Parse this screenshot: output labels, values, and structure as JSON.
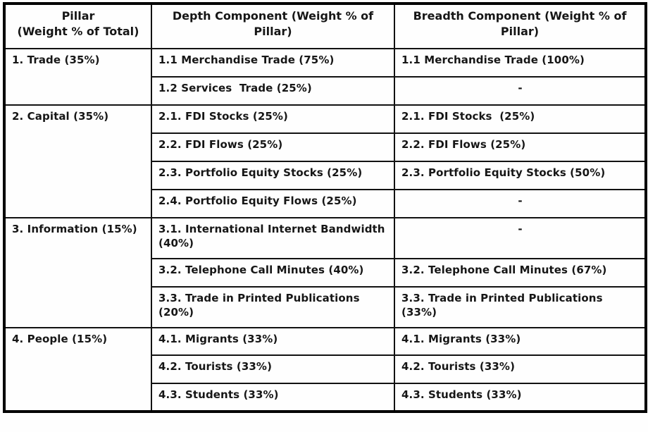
{
  "page": {
    "background_color": "#ffffff",
    "border_color": "#000000",
    "text_color": "#161616"
  },
  "table": {
    "columns": [
      {
        "label": "Pillar\n(Weight % of Total)"
      },
      {
        "label": "Depth Component (Weight % of\nPillar)"
      },
      {
        "label": "Breadth Component (Weight % of\nPillar)"
      }
    ],
    "rows": [
      {
        "pillar": "1. Trade (35%)",
        "depth": "1.1 Merchandise Trade (75%)",
        "breadth": "1.1 Merchandise Trade (100%)"
      },
      {
        "depth": "1.2 Services  Trade (25%)",
        "breadth": "-"
      },
      {
        "pillar": "2. Capital (35%)",
        "depth": "2.1. FDI Stocks (25%)",
        "breadth": "2.1. FDI Stocks  (25%)"
      },
      {
        "depth": "2.2. FDI Flows (25%)",
        "breadth": "2.2. FDI Flows (25%)"
      },
      {
        "depth": "2.3. Portfolio Equity Stocks (25%)",
        "breadth": "2.3. Portfolio Equity Stocks (50%)"
      },
      {
        "depth": "2.4. Portfolio Equity Flows (25%)",
        "breadth": "-"
      },
      {
        "pillar": "3. Information (15%)",
        "depth": "3.1. International Internet Bandwidth\n(40%)",
        "breadth": "-"
      },
      {
        "depth": "3.2. Telephone Call Minutes (40%)",
        "breadth": "3.2. Telephone Call Minutes (67%)"
      },
      {
        "depth": "3.3. Trade in Printed Publications\n(20%)",
        "breadth": "3.3. Trade in Printed Publications\n(33%)"
      },
      {
        "pillar": "4. People (15%)",
        "depth": "4.1. Migrants (33%)",
        "breadth": "4.1. Migrants (33%)"
      },
      {
        "depth": "4.2. Tourists (33%)",
        "breadth": "4.2. Tourists (33%)"
      },
      {
        "depth": "4.3. Students (33%)",
        "breadth": "4.3. Students (33%)"
      }
    ]
  }
}
